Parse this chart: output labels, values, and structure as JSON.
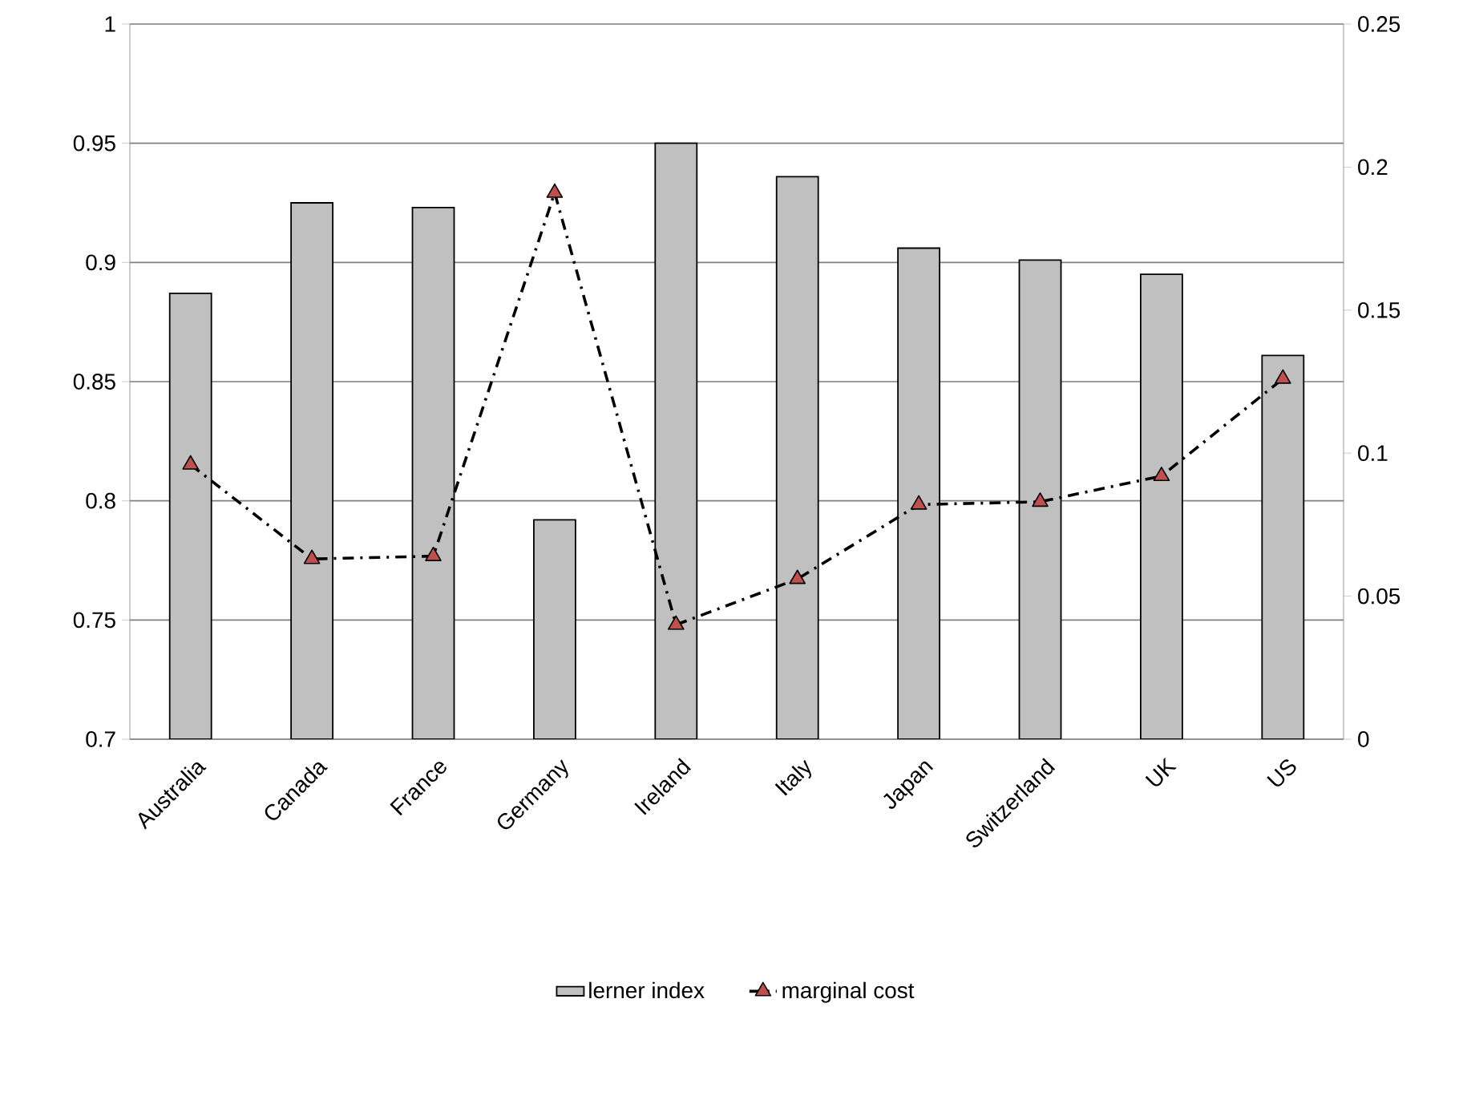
{
  "chart_data": {
    "type": "bar",
    "categories": [
      "Australia",
      "Canada",
      "France",
      "Germany",
      "Ireland",
      "Italy",
      "Japan",
      "Switzerland",
      "UK",
      "US"
    ],
    "series": [
      {
        "name": "lerner index",
        "color": "#c0c0c0",
        "values": [
          0.887,
          0.925,
          0.923,
          0.792,
          0.95,
          0.936,
          0.906,
          0.901,
          0.895,
          0.861
        ]
      },
      {
        "name": "marginal cost",
        "type": "line",
        "axis": "y2",
        "color": "#c0504d",
        "marker": "triangle",
        "line_style": "dashdot",
        "values": [
          0.096,
          0.063,
          0.064,
          0.191,
          0.04,
          0.056,
          0.082,
          0.083,
          0.092,
          0.126
        ]
      }
    ],
    "ylim": [
      0.7,
      1
    ],
    "yticks": [
      0.7,
      0.75,
      0.8,
      0.85,
      0.9,
      0.95,
      1
    ],
    "y2lim": [
      0,
      0.25
    ],
    "y2ticks": [
      0,
      0.05,
      0.1,
      0.15,
      0.2,
      0.25
    ],
    "grid": "y",
    "legend": "bottom"
  }
}
